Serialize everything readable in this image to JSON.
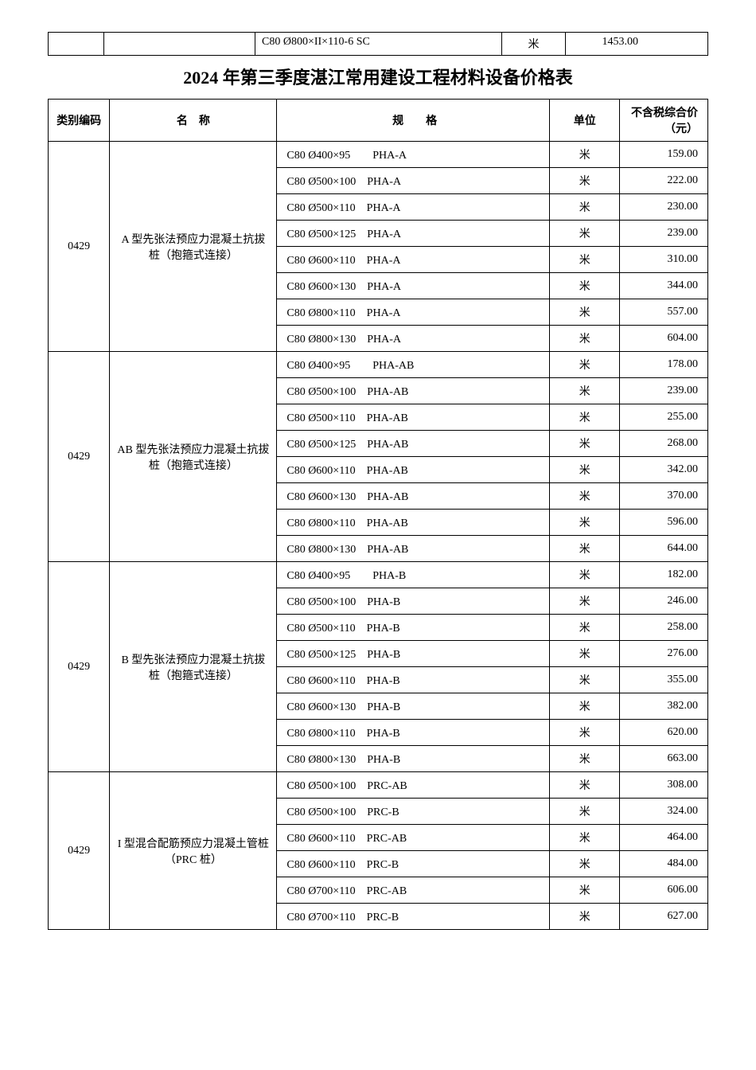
{
  "top_row": {
    "spec": "C80    Ø800×II×110-6 SC",
    "unit": "米",
    "price": "1453.00"
  },
  "title": "2024 年第三季度湛江常用建设工程材料设备价格表",
  "headers": {
    "code": "类别编码",
    "name": "名　称",
    "spec": "规　　格",
    "unit": "单位",
    "price": "不含税综合价（元）"
  },
  "groups": [
    {
      "code": "0429",
      "name": "A 型先张法预应力混凝土抗拔桩（抱箍式连接）",
      "rows": [
        {
          "spec": "C80 Ø400×95　　PHA-A",
          "unit": "米",
          "price": "159.00"
        },
        {
          "spec": "C80 Ø500×100　PHA-A",
          "unit": "米",
          "price": "222.00"
        },
        {
          "spec": "C80 Ø500×110　PHA-A",
          "unit": "米",
          "price": "230.00"
        },
        {
          "spec": "C80 Ø500×125　PHA-A",
          "unit": "米",
          "price": "239.00"
        },
        {
          "spec": "C80 Ø600×110　PHA-A",
          "unit": "米",
          "price": "310.00"
        },
        {
          "spec": "C80 Ø600×130　PHA-A",
          "unit": "米",
          "price": "344.00"
        },
        {
          "spec": "C80 Ø800×110　PHA-A",
          "unit": "米",
          "price": "557.00"
        },
        {
          "spec": "C80 Ø800×130　PHA-A",
          "unit": "米",
          "price": "604.00"
        }
      ]
    },
    {
      "code": "0429",
      "name": "AB 型先张法预应力混凝土抗拔桩（抱箍式连接）",
      "rows": [
        {
          "spec": "C80 Ø400×95　　PHA-AB",
          "unit": "米",
          "price": "178.00"
        },
        {
          "spec": "C80 Ø500×100　PHA-AB",
          "unit": "米",
          "price": "239.00"
        },
        {
          "spec": "C80 Ø500×110　PHA-AB",
          "unit": "米",
          "price": "255.00"
        },
        {
          "spec": "C80 Ø500×125　PHA-AB",
          "unit": "米",
          "price": "268.00"
        },
        {
          "spec": "C80 Ø600×110　PHA-AB",
          "unit": "米",
          "price": "342.00"
        },
        {
          "spec": "C80 Ø600×130　PHA-AB",
          "unit": "米",
          "price": "370.00"
        },
        {
          "spec": "C80 Ø800×110　PHA-AB",
          "unit": "米",
          "price": "596.00"
        },
        {
          "spec": "C80 Ø800×130　PHA-AB",
          "unit": "米",
          "price": "644.00"
        }
      ]
    },
    {
      "code": "0429",
      "name": "B 型先张法预应力混凝土抗拔桩（抱箍式连接）",
      "rows": [
        {
          "spec": "C80 Ø400×95　　PHA-B",
          "unit": "米",
          "price": "182.00"
        },
        {
          "spec": "C80 Ø500×100　PHA-B",
          "unit": "米",
          "price": "246.00"
        },
        {
          "spec": "C80 Ø500×110　PHA-B",
          "unit": "米",
          "price": "258.00"
        },
        {
          "spec": "C80 Ø500×125　PHA-B",
          "unit": "米",
          "price": "276.00"
        },
        {
          "spec": "C80 Ø600×110　PHA-B",
          "unit": "米",
          "price": "355.00"
        },
        {
          "spec": "C80 Ø600×130　PHA-B",
          "unit": "米",
          "price": "382.00"
        },
        {
          "spec": "C80 Ø800×110　PHA-B",
          "unit": "米",
          "price": "620.00"
        },
        {
          "spec": "C80 Ø800×130　PHA-B",
          "unit": "米",
          "price": "663.00"
        }
      ]
    },
    {
      "code": "0429",
      "name": "I 型混合配筋预应力混凝土管桩（PRC 桩）",
      "rows": [
        {
          "spec": "C80 Ø500×100　PRC-AB",
          "unit": "米",
          "price": "308.00"
        },
        {
          "spec": "C80 Ø500×100　PRC-B",
          "unit": "米",
          "price": "324.00"
        },
        {
          "spec": "C80 Ø600×110　PRC-AB",
          "unit": "米",
          "price": "464.00"
        },
        {
          "spec": "C80 Ø600×110　PRC-B",
          "unit": "米",
          "price": "484.00"
        },
        {
          "spec": "C80 Ø700×110　PRC-AB",
          "unit": "米",
          "price": "606.00"
        },
        {
          "spec": "C80 Ø700×110　PRC-B",
          "unit": "米",
          "price": "627.00"
        }
      ]
    }
  ]
}
